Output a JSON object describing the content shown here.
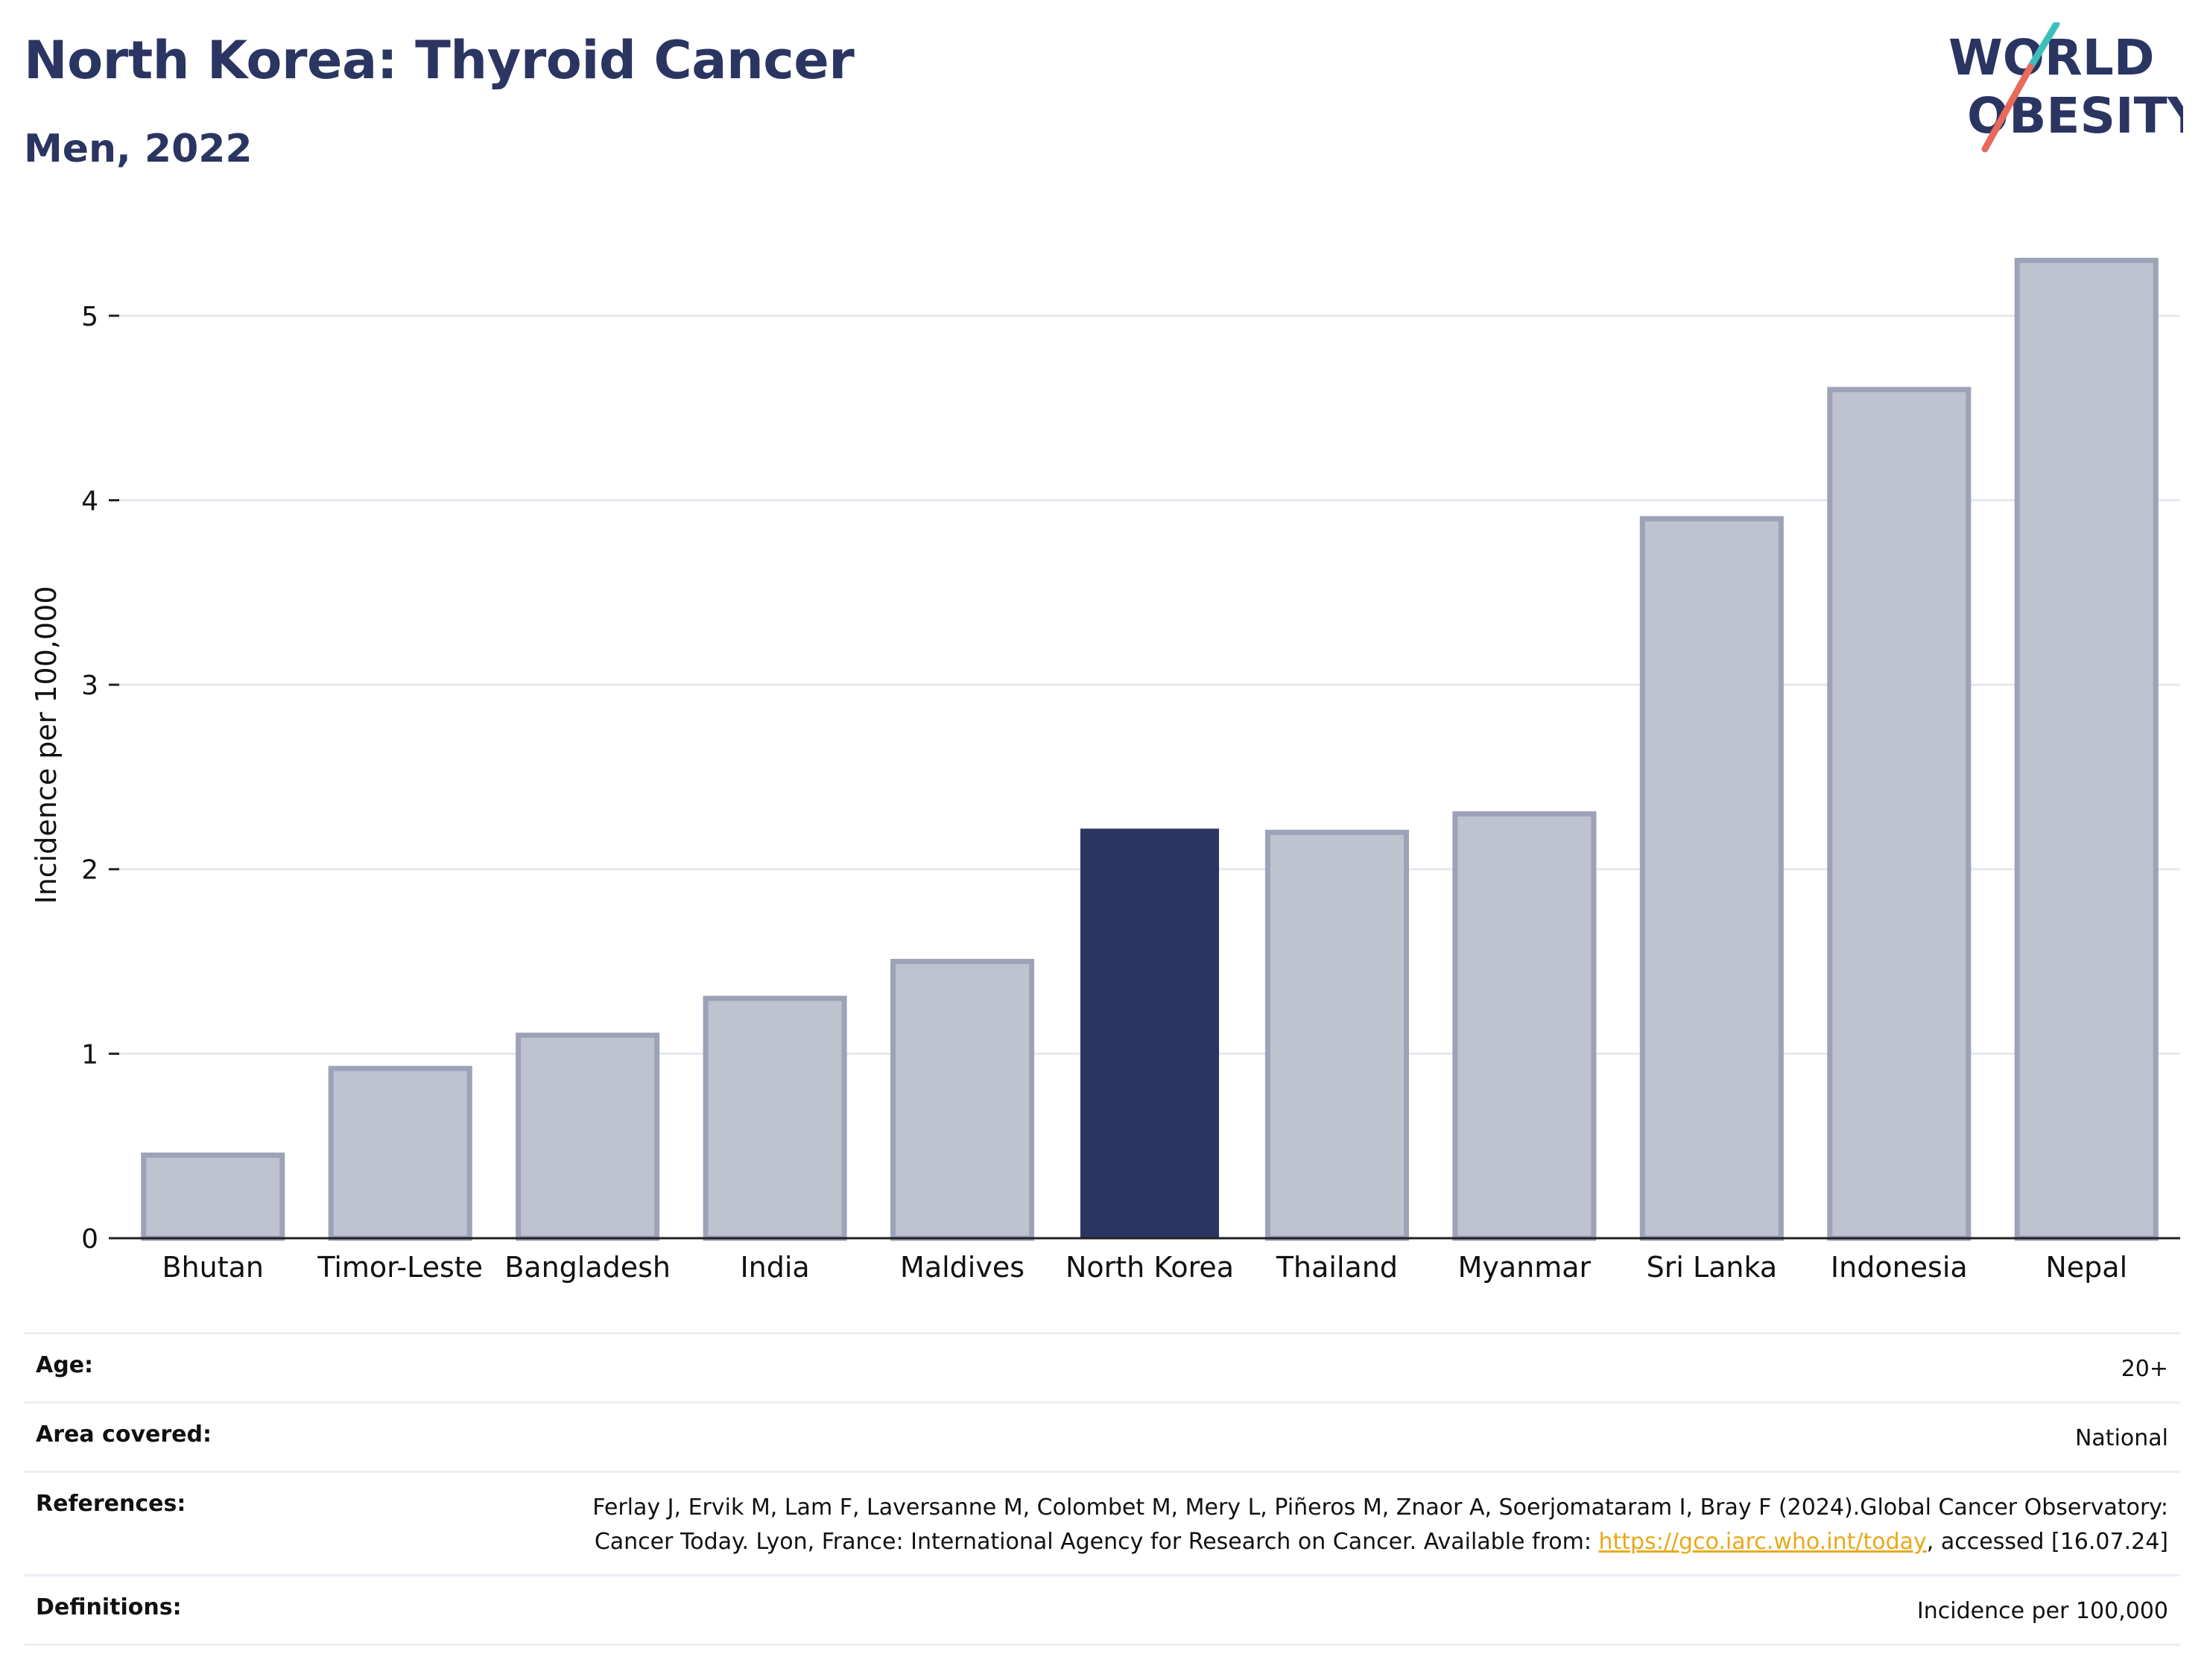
{
  "header": {
    "title": "North Korea: Thyroid Cancer",
    "subtitle": "Men, 2022"
  },
  "logo": {
    "line1": "WORLD",
    "line2": "OBESITY",
    "colors": {
      "text": "#2b3562",
      "slash_top": "#3cbfb8",
      "slash_bottom": "#e86a5b"
    }
  },
  "chart_data": {
    "type": "bar",
    "ylabel": "Incidence per 100,000",
    "xlabel": "",
    "ylim": [
      0,
      5.5
    ],
    "yticks": [
      0,
      1,
      2,
      3,
      4,
      5
    ],
    "grid": true,
    "categories": [
      "Bhutan",
      "Timor-Leste",
      "Bangladesh",
      "India",
      "Maldives",
      "North Korea",
      "Thailand",
      "Myanmar",
      "Sri Lanka",
      "Indonesia",
      "Nepal"
    ],
    "values": [
      0.45,
      0.92,
      1.1,
      1.3,
      1.5,
      2.22,
      2.2,
      2.3,
      3.9,
      4.6,
      5.3
    ],
    "highlight": "North Korea",
    "colors": {
      "highlight": "#2b3562",
      "other_fill": "#bfc2cf",
      "other_stroke": "#9da2b8",
      "grid": "#e6e8ee",
      "axis": "#222222"
    }
  },
  "meta": {
    "age_label": "Age:",
    "age_value": "20+",
    "area_label": "Area covered:",
    "area_value": "National",
    "references_label": "References:",
    "references_text_1": "Ferlay J, Ervik M, Lam F, Laversanne M, Colombet M, Mery L, Piñeros M, Znaor A, Soerjomataram I, Bray F (2024).Global Cancer Observatory: Cancer Today. Lyon, France: International Agency for Research on Cancer. Available from: ",
    "references_link": "https://gco.iarc.who.int/today",
    "references_text_2": ", accessed [16.07.24]",
    "definitions_label": "Definitions:",
    "definitions_value": "Incidence per 100,000"
  }
}
